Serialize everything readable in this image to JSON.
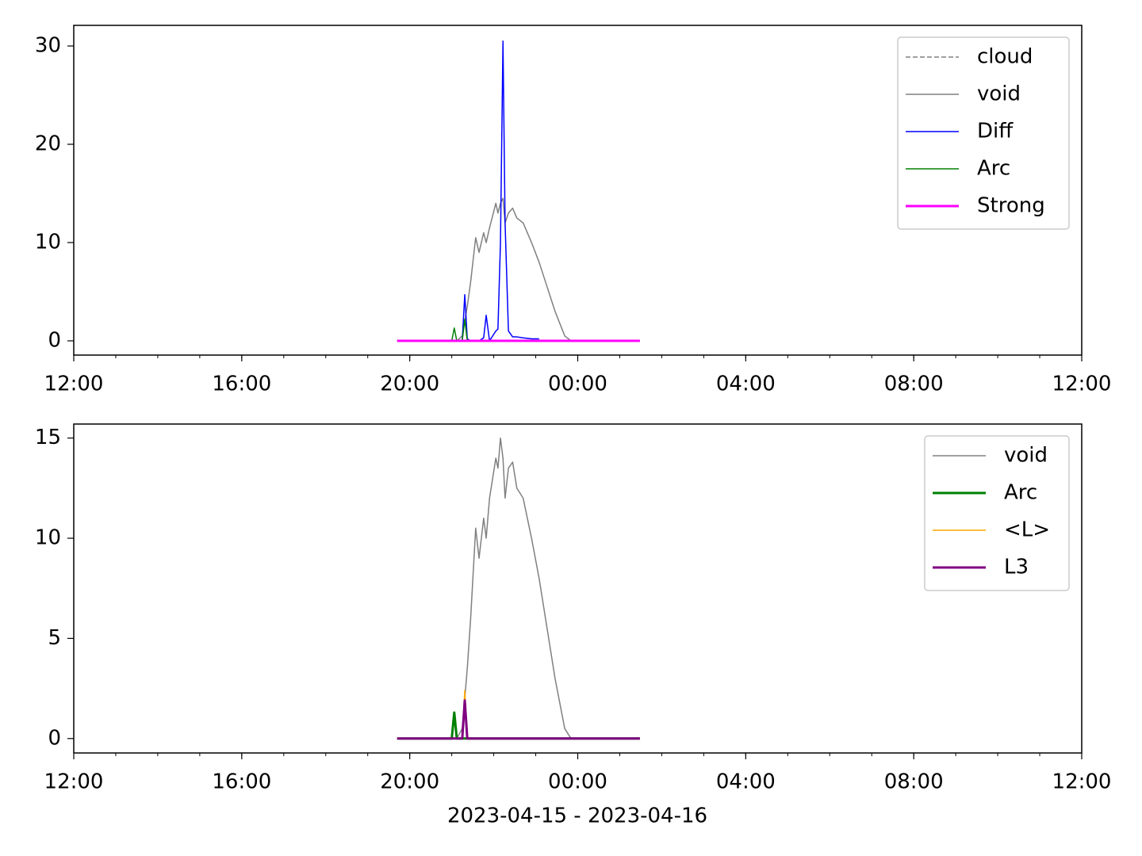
{
  "chart_data": [
    {
      "type": "line",
      "x": [
        19.7,
        20.5,
        21.0,
        21.06,
        21.12,
        21.25,
        21.31,
        21.37,
        21.45,
        21.57,
        21.65,
        21.76,
        21.82,
        21.9,
        22.05,
        22.1,
        22.16,
        22.22,
        22.27,
        22.35,
        22.45,
        22.55,
        22.7,
        22.9,
        23.08,
        23.27,
        23.46,
        23.69,
        23.84,
        24.5,
        25.48
      ],
      "series": [
        {
          "name": "cloud",
          "color": "#808080",
          "linestyle": "dashed",
          "linewidth": 1.5,
          "values": [
            0,
            0,
            0,
            0,
            0,
            0,
            0,
            0,
            0,
            0,
            0,
            0,
            0,
            0,
            0,
            0,
            0,
            0,
            0,
            0,
            0,
            0,
            0,
            0,
            0,
            0,
            0,
            0,
            0,
            0,
            0
          ]
        },
        {
          "name": "void",
          "color": "#808080",
          "linewidth": 1.5,
          "values": [
            0,
            0,
            0,
            0,
            0,
            0.5,
            2,
            3.5,
            6,
            10.5,
            9,
            11,
            10,
            11.5,
            14,
            13,
            14,
            14.5,
            12,
            13,
            13.5,
            12.5,
            12,
            10,
            8,
            5.5,
            3,
            0.5,
            0,
            0,
            0
          ]
        },
        {
          "name": "Diff",
          "color": "#0000ff",
          "linewidth": 1.5,
          "values": [
            null,
            null,
            0,
            0,
            0,
            0,
            4.7,
            0.2,
            0,
            0,
            0,
            0.3,
            2.6,
            0,
            1,
            1.2,
            10,
            30.5,
            12,
            1,
            0.4,
            0.4,
            0.3,
            0.2,
            0.2,
            null,
            null,
            null,
            null,
            null,
            null
          ]
        },
        {
          "name": "Arc",
          "color": "#008000",
          "linewidth": 1.5,
          "values": [
            0,
            0,
            0,
            1.3,
            0,
            0,
            2.2,
            0,
            0,
            0,
            0,
            0,
            0,
            0,
            0,
            0,
            0,
            0,
            0,
            0,
            0,
            0,
            0,
            0,
            0,
            0,
            0,
            0,
            0,
            0,
            0
          ]
        },
        {
          "name": "Strong",
          "color": "#ff00ff",
          "linewidth": 3,
          "values": [
            0,
            0,
            0,
            0,
            0,
            0,
            0,
            0,
            0,
            0,
            0,
            0,
            0,
            0,
            0,
            0,
            0,
            0,
            0,
            0,
            0,
            0,
            0,
            0,
            0,
            0,
            0,
            0,
            0,
            0,
            0
          ]
        }
      ],
      "xlim": [
        12,
        36
      ],
      "xticks": [
        {
          "value": 12,
          "label": "12:00"
        },
        {
          "value": 16,
          "label": "16:00"
        },
        {
          "value": 20,
          "label": "20:00"
        },
        {
          "value": 24,
          "label": "00:00"
        },
        {
          "value": 28,
          "label": "04:00"
        },
        {
          "value": 32,
          "label": "08:00"
        },
        {
          "value": 36,
          "label": "12:00"
        }
      ],
      "ylim": [
        -1.45,
        32.1
      ],
      "yticks": [
        0,
        10,
        20,
        30
      ],
      "legend": "upper right"
    },
    {
      "type": "line",
      "x": [
        19.7,
        20.5,
        21.0,
        21.06,
        21.12,
        21.25,
        21.31,
        21.37,
        21.45,
        21.57,
        21.65,
        21.76,
        21.82,
        21.9,
        22.05,
        22.1,
        22.16,
        22.22,
        22.27,
        22.35,
        22.45,
        22.55,
        22.7,
        22.9,
        23.08,
        23.27,
        23.46,
        23.69,
        23.84,
        24.5,
        25.48
      ],
      "xlabel": "2023-04-15 - 2023-04-16",
      "series": [
        {
          "name": "void",
          "color": "#808080",
          "linewidth": 1.5,
          "values": [
            0,
            0,
            0,
            0,
            0,
            0.5,
            2,
            3.5,
            6,
            10.5,
            9,
            11,
            10,
            12,
            14,
            13.5,
            15,
            14,
            12,
            13.5,
            13.8,
            12.5,
            12,
            10,
            8,
            5.5,
            3,
            0.5,
            0,
            0,
            0
          ]
        },
        {
          "name": "Arc",
          "color": "#008000",
          "linewidth": 3,
          "values": [
            0,
            0,
            0,
            1.3,
            0,
            0,
            0,
            0,
            0,
            0,
            0,
            0,
            0,
            0,
            0,
            0,
            0,
            0,
            0,
            0,
            0,
            0,
            0,
            0,
            0,
            0,
            0,
            0,
            0,
            0,
            0
          ]
        },
        {
          "name": "<L>",
          "color": "#ffa500",
          "linewidth": 1.5,
          "values": [
            0,
            0,
            0,
            0,
            0,
            0,
            2.4,
            0,
            0,
            0,
            0,
            0,
            0,
            0,
            0,
            0,
            0,
            0,
            0,
            0,
            0,
            0,
            0,
            0,
            0,
            0,
            0,
            0,
            0,
            0,
            0
          ]
        },
        {
          "name": "L3",
          "color": "#800080",
          "linewidth": 3,
          "values": [
            0,
            0,
            0,
            0,
            0,
            0,
            1.9,
            0,
            0,
            0,
            0,
            0,
            0,
            0,
            0,
            0,
            0,
            0,
            0,
            0,
            0,
            0,
            0,
            0,
            0,
            0,
            0,
            0,
            0,
            0,
            0
          ]
        }
      ],
      "xlim": [
        12,
        36
      ],
      "xticks": [
        {
          "value": 12,
          "label": "12:00"
        },
        {
          "value": 16,
          "label": "16:00"
        },
        {
          "value": 20,
          "label": "20:00"
        },
        {
          "value": 24,
          "label": "00:00"
        },
        {
          "value": 28,
          "label": "04:00"
        },
        {
          "value": 32,
          "label": "08:00"
        },
        {
          "value": 36,
          "label": "12:00"
        }
      ],
      "ylim": [
        -0.72,
        15.7
      ],
      "yticks": [
        0,
        5,
        10,
        15
      ],
      "legend": "upper right"
    }
  ]
}
